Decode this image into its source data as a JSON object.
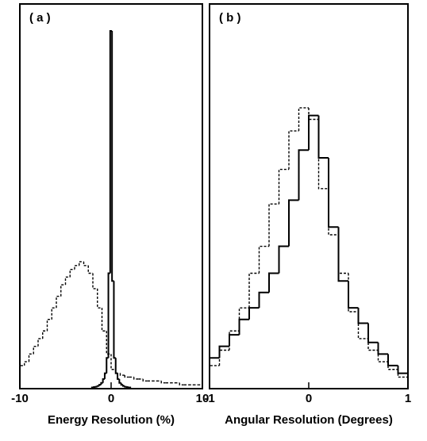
{
  "chart_data": [
    {
      "type": "histogram",
      "title": "( a )",
      "x_label": "Energy  Resolution  (%)",
      "xlim": [
        -10,
        10
      ],
      "xticks": [
        -10,
        0,
        10
      ],
      "ylim": [
        0,
        100
      ],
      "series": [
        {
          "color": "#000000",
          "dashed": false,
          "bins": [
            -2.1,
            -1.9,
            -1.7,
            -1.5,
            -1.3,
            -1.1,
            -0.9,
            -0.7,
            -0.5,
            -0.3,
            -0.1,
            0.1,
            0.3,
            0.5,
            0.7,
            0.9,
            1.1,
            1.3,
            1.5,
            1.7,
            1.9,
            2.1
          ],
          "values": [
            0.3,
            0.4,
            0.5,
            0.7,
            1,
            1.5,
            2.5,
            4,
            8,
            30,
            93,
            28,
            8,
            4,
            2.5,
            1.5,
            1,
            0.7,
            0.5,
            0.4,
            0.3
          ]
        },
        {
          "color": "#000000",
          "dashed": true,
          "bins": [
            -10,
            -9.5,
            -9,
            -8.5,
            -8,
            -7.5,
            -7,
            -6.5,
            -6,
            -5.5,
            -5,
            -4.5,
            -4,
            -3.5,
            -3,
            -2.5,
            -2,
            -1.5,
            -1,
            -0.5,
            0,
            0.5,
            1,
            1.5,
            2,
            2.5,
            3,
            3.5,
            4,
            4.5,
            5,
            5.5,
            6,
            6.5,
            7,
            7.5,
            8,
            8.5,
            9,
            9.5,
            10
          ],
          "values": [
            6,
            7,
            9,
            11,
            13,
            15,
            18,
            21,
            24,
            27,
            29,
            31,
            32,
            33,
            32,
            30,
            26,
            21,
            15,
            9,
            5,
            4,
            3.5,
            3,
            3,
            2.5,
            2.5,
            2,
            2,
            2,
            2,
            1.5,
            1.5,
            1.5,
            1.5,
            1,
            1,
            1,
            1,
            1
          ]
        }
      ]
    },
    {
      "type": "histogram",
      "title": "( b )",
      "x_label": "Angular Resolution (Degrees)",
      "xlim": [
        -1,
        1
      ],
      "xticks": [
        -1,
        0,
        1
      ],
      "ylim": [
        0,
        100
      ],
      "series": [
        {
          "color": "#000000",
          "dashed": false,
          "bins": [
            -1,
            -0.9,
            -0.8,
            -0.7,
            -0.6,
            -0.5,
            -0.4,
            -0.3,
            -0.2,
            -0.1,
            0,
            0.1,
            0.2,
            0.3,
            0.4,
            0.5,
            0.6,
            0.7,
            0.8,
            0.9,
            1
          ],
          "values": [
            8,
            11,
            14,
            18,
            21,
            25,
            30,
            37,
            49,
            62,
            71,
            60,
            42,
            28,
            21,
            17,
            12,
            9,
            6,
            4
          ]
        },
        {
          "color": "#000000",
          "dashed": true,
          "bins": [
            -1,
            -0.9,
            -0.8,
            -0.7,
            -0.6,
            -0.5,
            -0.4,
            -0.3,
            -0.2,
            -0.1,
            0,
            0.1,
            0.2,
            0.3,
            0.4,
            0.5,
            0.6,
            0.7,
            0.8,
            0.9,
            1
          ],
          "values": [
            6,
            10,
            15,
            21,
            30,
            37,
            48,
            57,
            67,
            73,
            70,
            52,
            40,
            30,
            20,
            13,
            10,
            7,
            5,
            3
          ]
        }
      ]
    }
  ]
}
